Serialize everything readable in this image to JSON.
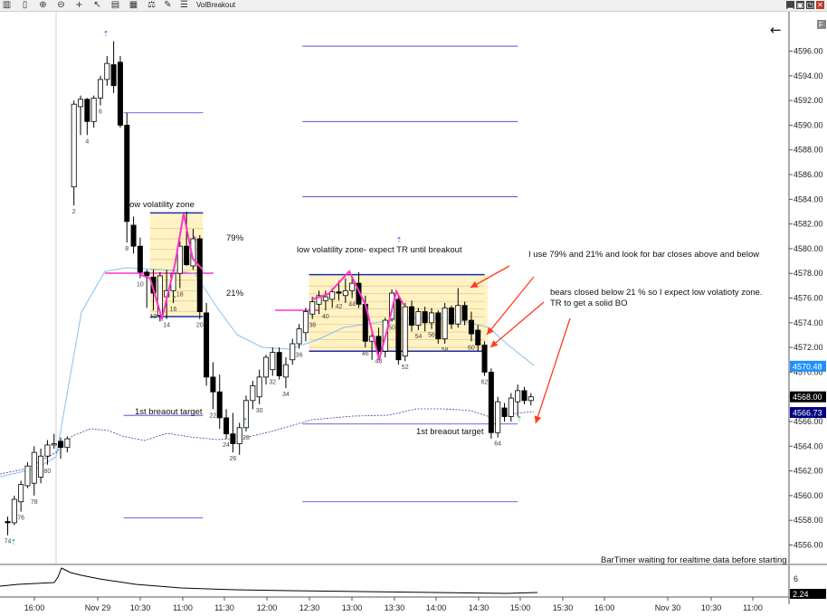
{
  "window": {
    "title": "VolBreakout",
    "f_label": "F"
  },
  "toolbar_icons": [
    "bars-icon",
    "candles-icon",
    "zoom-in-icon",
    "zoom-out-icon",
    "crosshair-icon",
    "pointer-icon",
    "bar-type-icon",
    "data-series-icon",
    "indicators-icon",
    "drawing-tools-icon",
    "properties-icon"
  ],
  "chart_data": {
    "type": "candlestick",
    "price_axis": {
      "ticks": [
        "4596.00",
        "4594.00",
        "4592.00",
        "4590.00",
        "4588.00",
        "4586.00",
        "4584.00",
        "4582.00",
        "4580.00",
        "4578.00",
        "4576.00",
        "4574.00",
        "4572.00",
        "4570.00",
        "4568.00",
        "4566.00",
        "4564.00",
        "4562.00",
        "4560.00",
        "4558.00",
        "4556.00"
      ],
      "range": [
        4555.3,
        4597.6
      ]
    },
    "time_axis": {
      "labels": [
        "16:00",
        "Nov 29",
        "10:30",
        "11:00",
        "11:30",
        "12:00",
        "12:30",
        "13:00",
        "13:30",
        "14:00",
        "14:30",
        "15:00",
        "15:30",
        "16:00",
        "Nov 30",
        "10:30",
        "11:00"
      ]
    },
    "price_labels": [
      {
        "value": "4570.48",
        "price": 4570.48,
        "bg": "#1e90ff",
        "fg": "#ffffff"
      },
      {
        "value": "4568.00",
        "price": 4568.0,
        "bg": "#000000",
        "fg": "#ffffff"
      },
      {
        "value": "4566.73",
        "price": 4566.73,
        "bg": "#000080",
        "fg": "#ffffff"
      }
    ],
    "indicator": {
      "ticks": [
        "6"
      ],
      "value_label": "2.24"
    },
    "candles": [
      {
        "o": 4557.9,
        "h": 4558.3,
        "l": 4556.8,
        "c": 4557.8
      },
      {
        "o": 4557.8,
        "h": 4560.0,
        "l": 4557.6,
        "c": 4559.7
      },
      {
        "o": 4559.5,
        "h": 4561.2,
        "l": 4558.7,
        "c": 4560.9
      },
      {
        "o": 4560.8,
        "h": 4562.7,
        "l": 4560.6,
        "c": 4562.4
      },
      {
        "o": 4561.0,
        "h": 4564.0,
        "l": 4560.0,
        "c": 4563.5
      },
      {
        "o": 4561.5,
        "h": 4563.8,
        "l": 4561.0,
        "c": 4563.2
      },
      {
        "o": 4563.2,
        "h": 4564.5,
        "l": 4562.5,
        "c": 4564.1
      },
      {
        "o": 4564.1,
        "h": 4565.0,
        "l": 4563.8,
        "c": 4564.2
      },
      {
        "o": 4564.4,
        "h": 4564.7,
        "l": 4563.0,
        "c": 4563.9
      },
      {
        "o": 4563.9,
        "h": 4564.8,
        "l": 4563.5,
        "c": 4564.6
      },
      {
        "o": 4585.0,
        "h": 4592.0,
        "l": 4583.5,
        "c": 4591.7
      },
      {
        "o": 4591.5,
        "h": 4592.4,
        "l": 4589.2,
        "c": 4592.1
      },
      {
        "o": 4592.1,
        "h": 4592.2,
        "l": 4589.2,
        "c": 4590.3
      },
      {
        "o": 4590.3,
        "h": 4592.4,
        "l": 4589.8,
        "c": 4592.2
      },
      {
        "o": 4592.2,
        "h": 4594.0,
        "l": 4591.6,
        "c": 4593.7
      },
      {
        "o": 4593.7,
        "h": 4595.6,
        "l": 4593.2,
        "c": 4595.0
      },
      {
        "o": 4594.9,
        "h": 4596.8,
        "l": 4592.6,
        "c": 4593.2
      },
      {
        "o": 4595.1,
        "h": 4595.6,
        "l": 4589.8,
        "c": 4590.0
      },
      {
        "o": 4590.0,
        "h": 4591.0,
        "l": 4580.5,
        "c": 4582.2
      },
      {
        "o": 4581.9,
        "h": 4582.6,
        "l": 4579.6,
        "c": 4580.2
      },
      {
        "o": 4580.2,
        "h": 4580.9,
        "l": 4577.6,
        "c": 4578.1
      },
      {
        "o": 4578.1,
        "h": 4578.3,
        "l": 4575.2,
        "c": 4577.8
      },
      {
        "o": 4577.7,
        "h": 4578.3,
        "l": 4575.0,
        "c": 4576.4
      },
      {
        "o": 4574.6,
        "h": 4578.1,
        "l": 4574.1,
        "c": 4577.8
      },
      {
        "o": 4576.1,
        "h": 4578.3,
        "l": 4574.3,
        "c": 4576.6
      },
      {
        "o": 4576.6,
        "h": 4578.4,
        "l": 4575.6,
        "c": 4578.0
      },
      {
        "o": 4578.0,
        "h": 4580.6,
        "l": 4576.8,
        "c": 4580.2
      },
      {
        "o": 4580.2,
        "h": 4583.0,
        "l": 4578.6,
        "c": 4578.7
      },
      {
        "o": 4578.6,
        "h": 4581.6,
        "l": 4578.3,
        "c": 4580.8
      },
      {
        "o": 4580.8,
        "h": 4581.1,
        "l": 4574.3,
        "c": 4574.9
      },
      {
        "o": 4574.8,
        "h": 4575.6,
        "l": 4568.9,
        "c": 4569.6
      },
      {
        "o": 4569.6,
        "h": 4570.8,
        "l": 4567.0,
        "c": 4568.4
      },
      {
        "o": 4568.4,
        "h": 4569.8,
        "l": 4565.4,
        "c": 4566.3
      },
      {
        "o": 4566.3,
        "h": 4567.0,
        "l": 4564.6,
        "c": 4565.0
      },
      {
        "o": 4565.0,
        "h": 4566.7,
        "l": 4563.5,
        "c": 4564.2
      },
      {
        "o": 4564.2,
        "h": 4565.9,
        "l": 4563.3,
        "c": 4565.5
      },
      {
        "o": 4565.5,
        "h": 4568.1,
        "l": 4565.2,
        "c": 4567.7
      },
      {
        "o": 4567.7,
        "h": 4569.3,
        "l": 4567.0,
        "c": 4568.9
      },
      {
        "o": 4568.0,
        "h": 4570.2,
        "l": 4567.4,
        "c": 4569.6
      },
      {
        "o": 4569.6,
        "h": 4571.4,
        "l": 4569.0,
        "c": 4571.2
      },
      {
        "o": 4570.2,
        "h": 4572.0,
        "l": 4569.7,
        "c": 4571.6
      },
      {
        "o": 4571.6,
        "h": 4572.0,
        "l": 4569.4,
        "c": 4569.7
      },
      {
        "o": 4569.6,
        "h": 4571.2,
        "l": 4568.7,
        "c": 4570.6
      },
      {
        "o": 4571.0,
        "h": 4572.7,
        "l": 4570.6,
        "c": 4572.3
      },
      {
        "o": 4572.3,
        "h": 4573.9,
        "l": 4571.9,
        "c": 4573.5
      },
      {
        "o": 4573.2,
        "h": 4575.2,
        "l": 4572.5,
        "c": 4574.9
      },
      {
        "o": 4574.7,
        "h": 4576.1,
        "l": 4574.3,
        "c": 4575.7
      },
      {
        "o": 4575.5,
        "h": 4576.6,
        "l": 4574.7,
        "c": 4576.2
      },
      {
        "o": 4575.8,
        "h": 4576.6,
        "l": 4575.0,
        "c": 4576.1
      },
      {
        "o": 4575.9,
        "h": 4576.8,
        "l": 4575.2,
        "c": 4576.5
      },
      {
        "o": 4576.5,
        "h": 4577.4,
        "l": 4575.8,
        "c": 4576.4
      },
      {
        "o": 4576.2,
        "h": 4577.6,
        "l": 4575.6,
        "c": 4576.6
      },
      {
        "o": 4576.6,
        "h": 4577.8,
        "l": 4576.0,
        "c": 4577.2
      },
      {
        "o": 4577.2,
        "h": 4578.1,
        "l": 4575.2,
        "c": 4575.5
      },
      {
        "o": 4575.5,
        "h": 4576.2,
        "l": 4572.0,
        "c": 4572.5
      },
      {
        "o": 4572.5,
        "h": 4573.5,
        "l": 4571.0,
        "c": 4572.9
      },
      {
        "o": 4572.9,
        "h": 4573.6,
        "l": 4571.4,
        "c": 4571.7
      },
      {
        "o": 4571.7,
        "h": 4574.4,
        "l": 4571.2,
        "c": 4574.2
      },
      {
        "o": 4574.3,
        "h": 4576.7,
        "l": 4574.1,
        "c": 4576.4
      },
      {
        "o": 4575.9,
        "h": 4576.1,
        "l": 4570.6,
        "c": 4571.0
      },
      {
        "o": 4571.3,
        "h": 4575.6,
        "l": 4570.9,
        "c": 4575.3
      },
      {
        "o": 4575.3,
        "h": 4575.8,
        "l": 4573.3,
        "c": 4573.8
      },
      {
        "o": 4573.8,
        "h": 4575.2,
        "l": 4573.4,
        "c": 4574.9
      },
      {
        "o": 4574.9,
        "h": 4575.3,
        "l": 4573.3,
        "c": 4574.0
      },
      {
        "o": 4574.0,
        "h": 4575.2,
        "l": 4573.5,
        "c": 4574.8
      },
      {
        "o": 4574.8,
        "h": 4575.0,
        "l": 4572.3,
        "c": 4572.7
      },
      {
        "o": 4572.7,
        "h": 4575.6,
        "l": 4572.3,
        "c": 4575.2
      },
      {
        "o": 4575.2,
        "h": 4575.4,
        "l": 4573.5,
        "c": 4573.9
      },
      {
        "o": 4573.9,
        "h": 4576.8,
        "l": 4573.6,
        "c": 4575.4
      },
      {
        "o": 4575.4,
        "h": 4575.7,
        "l": 4573.8,
        "c": 4574.2
      },
      {
        "o": 4574.2,
        "h": 4574.9,
        "l": 4572.5,
        "c": 4573.1
      },
      {
        "o": 4573.4,
        "h": 4573.8,
        "l": 4571.7,
        "c": 4572.2
      },
      {
        "o": 4572.2,
        "h": 4572.5,
        "l": 4569.7,
        "c": 4570.0
      },
      {
        "o": 4570.0,
        "h": 4570.3,
        "l": 4564.6,
        "c": 4565.1
      },
      {
        "o": 4565.1,
        "h": 4568.0,
        "l": 4564.7,
        "c": 4567.6
      },
      {
        "o": 4567.1,
        "h": 4567.5,
        "l": 4566.0,
        "c": 4566.4
      },
      {
        "o": 4566.4,
        "h": 4568.3,
        "l": 4566.0,
        "c": 4567.9
      },
      {
        "o": 4567.6,
        "h": 4569.0,
        "l": 4566.4,
        "c": 4568.5
      },
      {
        "o": 4568.5,
        "h": 4568.8,
        "l": 4567.4,
        "c": 4567.7
      },
      {
        "o": 4567.7,
        "h": 4568.3,
        "l": 4567.3,
        "c": 4568.0
      }
    ],
    "bar_numbers": [
      {
        "bar": 0,
        "label": "74"
      },
      {
        "bar": 2,
        "label": "76"
      },
      {
        "bar": 4,
        "label": "78"
      },
      {
        "bar": 6,
        "label": "80"
      },
      {
        "bar": 10,
        "label": "2"
      },
      {
        "bar": 12,
        "label": "4"
      },
      {
        "bar": 14,
        "label": "6"
      },
      {
        "bar": 18,
        "label": "8"
      },
      {
        "bar": 20,
        "label": "10"
      },
      {
        "bar": 22,
        "label": "12"
      },
      {
        "bar": 24,
        "label": "14"
      },
      {
        "bar": 25,
        "label": "16"
      },
      {
        "bar": 26,
        "label": "18"
      },
      {
        "bar": 29,
        "label": "20"
      },
      {
        "bar": 31,
        "label": "22"
      },
      {
        "bar": 33,
        "label": "24"
      },
      {
        "bar": 34,
        "label": "26"
      },
      {
        "bar": 36,
        "label": "28"
      },
      {
        "bar": 38,
        "label": "30"
      },
      {
        "bar": 40,
        "label": "32"
      },
      {
        "bar": 42,
        "label": "34"
      },
      {
        "bar": 44,
        "label": "36"
      },
      {
        "bar": 46,
        "label": "38"
      },
      {
        "bar": 48,
        "label": "40"
      },
      {
        "bar": 50,
        "label": "42"
      },
      {
        "bar": 52,
        "label": "44"
      },
      {
        "bar": 54,
        "label": "46"
      },
      {
        "bar": 56,
        "label": "48"
      },
      {
        "bar": 58,
        "label": "50"
      },
      {
        "bar": 60,
        "label": "52"
      },
      {
        "bar": 62,
        "label": "54"
      },
      {
        "bar": 64,
        "label": "56"
      },
      {
        "bar": 66,
        "label": "58"
      },
      {
        "bar": 70,
        "label": "60"
      },
      {
        "bar": 72,
        "label": "62"
      },
      {
        "bar": 74,
        "label": "64"
      }
    ],
    "zones": [
      {
        "name": "zone-1",
        "bar_from": 21.5,
        "bar_to": 29.5,
        "top": 4582.9,
        "bottom": 4574.5
      },
      {
        "name": "zone-2",
        "bar_from": 45.5,
        "bar_to": 72.5,
        "top": 4577.9,
        "bottom": 4571.7
      }
    ],
    "target_levels": [
      {
        "bar_from": 17.5,
        "bar_to": 29.5,
        "price": 4591.0
      },
      {
        "bar_from": 17.5,
        "bar_to": 29.5,
        "price": 4566.5
      },
      {
        "bar_from": 17.5,
        "bar_to": 29.5,
        "price": 4558.2
      },
      {
        "bar_from": 44.5,
        "bar_to": 77,
        "price": 4596.4
      },
      {
        "bar_from": 44.5,
        "bar_to": 77,
        "price": 4590.3
      },
      {
        "bar_from": 44.5,
        "bar_to": 77,
        "price": 4584.2
      },
      {
        "bar_from": 44.5,
        "bar_to": 77,
        "price": 4565.8
      },
      {
        "bar_from": 44.5,
        "bar_to": 77,
        "price": 4559.5
      }
    ],
    "annotations": {
      "zone1_label": "low volatility zone",
      "zone2_label": "low volatility zone- expect TR until breakout",
      "pct_79": "79%",
      "pct_21": "21%",
      "note_1": "I use 79% and 21% and look for bar closes above and below",
      "note_2_line1": "bears closed below 21 % so I expect low volatioty zone.",
      "note_2_line2": "TR to get a solid BO",
      "target_1": "1st breaout target",
      "target_2": "1st breaout target",
      "bar_timer": "BarTimer waiting for realtime data before starting",
      "back_arrow": "←"
    },
    "colors": {
      "zone_fill": "#fff3c4",
      "zone_line": "#1f2ea8",
      "mid_line": "#e8c28a",
      "zigzag": "#ff33cc",
      "target_line": "#3a3ad0",
      "annotation_arrow": "#ff3b1f",
      "ema": "#87c0ef",
      "vwap": "#3c3ca0"
    }
  }
}
